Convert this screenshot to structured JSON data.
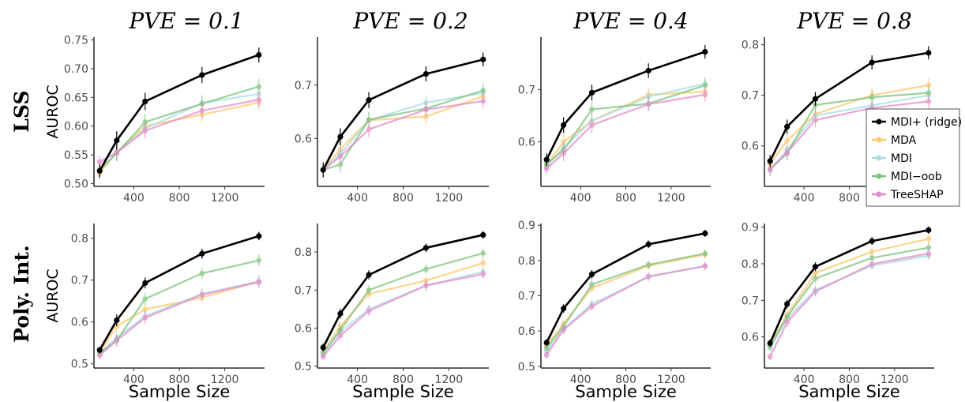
{
  "figure": {
    "column_titles": [
      "PVE = 0.1",
      "PVE = 0.2",
      "PVE = 0.4",
      "PVE = 0.8"
    ],
    "row_labels": [
      "LSS",
      "Poly. Int."
    ],
    "legend": [
      {
        "name": "MDI+ (ridge)",
        "color": "#000000"
      },
      {
        "name": "MDA",
        "color": "#fdc66a"
      },
      {
        "name": "MDI",
        "color": "#a8dbe0"
      },
      {
        "name": "MDI−oob",
        "color": "#7dc27d"
      },
      {
        "name": "TreeSHAP",
        "color": "#e48ac9"
      }
    ],
    "legend_location": "panel row 1, column 4, right side"
  },
  "chart_data": [
    {
      "type": "line",
      "title": "PVE = 0.1",
      "row": "LSS",
      "xlabel": "",
      "ylabel": "AUROC",
      "x": [
        100,
        250,
        500,
        1000,
        1500
      ],
      "xticks": [
        400,
        800,
        1200
      ],
      "xlim": [
        50,
        1550
      ],
      "ylim": [
        0.495,
        0.755
      ],
      "yticks": [
        0.5,
        0.55,
        0.6,
        0.65,
        0.7,
        0.75
      ],
      "ytick_labels": [
        "0.50",
        "0.55",
        "0.60",
        "0.65",
        "0.70",
        "0.75"
      ],
      "series": [
        {
          "name": "MDI+ (ridge)",
          "values": [
            0.522,
            0.575,
            0.643,
            0.689,
            0.724
          ],
          "err": [
            0.012,
            0.016,
            0.015,
            0.014,
            0.013
          ]
        },
        {
          "name": "MDA",
          "values": [
            0.518,
            0.555,
            0.6,
            0.62,
            0.641
          ],
          "err": [
            0.01,
            0.014,
            0.014,
            0.014,
            0.013
          ]
        },
        {
          "name": "MDI",
          "values": [
            0.524,
            0.553,
            0.596,
            0.64,
            0.656
          ],
          "err": [
            0.01,
            0.014,
            0.014,
            0.014,
            0.013
          ]
        },
        {
          "name": "MDI−oob",
          "values": [
            0.523,
            0.553,
            0.607,
            0.639,
            0.669
          ],
          "err": [
            0.01,
            0.014,
            0.014,
            0.014,
            0.013
          ]
        },
        {
          "name": "TreeSHAP",
          "values": [
            0.538,
            0.554,
            0.592,
            0.627,
            0.646
          ],
          "err": [
            0.01,
            0.014,
            0.014,
            0.014,
            0.013
          ]
        }
      ]
    },
    {
      "type": "line",
      "title": "PVE = 0.2",
      "row": "LSS",
      "xlabel": "",
      "ylabel": "",
      "x": [
        100,
        250,
        500,
        1000,
        1500
      ],
      "xticks": [
        400,
        800,
        1200
      ],
      "xlim": [
        50,
        1550
      ],
      "ylim": [
        0.51,
        0.79
      ],
      "yticks": [
        0.6,
        0.7
      ],
      "ytick_labels": [
        "0.6",
        "0.7"
      ],
      "series": [
        {
          "name": "MDI+ (ridge)",
          "values": [
            0.541,
            0.603,
            0.672,
            0.721,
            0.748
          ],
          "err": [
            0.014,
            0.016,
            0.015,
            0.014,
            0.013
          ]
        },
        {
          "name": "MDA",
          "values": [
            0.541,
            0.58,
            0.634,
            0.641,
            0.679
          ],
          "err": [
            0.013,
            0.015,
            0.015,
            0.014,
            0.013
          ]
        },
        {
          "name": "MDI",
          "values": [
            0.542,
            0.571,
            0.634,
            0.667,
            0.685
          ],
          "err": [
            0.013,
            0.015,
            0.015,
            0.014,
            0.013
          ]
        },
        {
          "name": "MDI−oob",
          "values": [
            0.541,
            0.551,
            0.635,
            0.656,
            0.69
          ],
          "err": [
            0.013,
            0.015,
            0.015,
            0.014,
            0.013
          ]
        },
        {
          "name": "TreeSHAP",
          "values": [
            0.541,
            0.566,
            0.617,
            0.654,
            0.67
          ],
          "err": [
            0.013,
            0.015,
            0.015,
            0.014,
            0.013
          ]
        }
      ]
    },
    {
      "type": "line",
      "title": "PVE = 0.4",
      "row": "LSS",
      "xlabel": "",
      "ylabel": "",
      "x": [
        100,
        250,
        500,
        1000,
        1500
      ],
      "xticks": [
        400,
        800,
        1200
      ],
      "xlim": [
        50,
        1550
      ],
      "ylim": [
        0.515,
        0.8
      ],
      "yticks": [
        0.6,
        0.7
      ],
      "ytick_labels": [
        "0.6",
        "0.7"
      ],
      "series": [
        {
          "name": "MDI+ (ridge)",
          "values": [
            0.566,
            0.632,
            0.694,
            0.736,
            0.772
          ],
          "err": [
            0.012,
            0.015,
            0.015,
            0.014,
            0.013
          ]
        },
        {
          "name": "MDA",
          "values": [
            0.556,
            0.6,
            0.64,
            0.69,
            0.696
          ],
          "err": [
            0.012,
            0.015,
            0.015,
            0.014,
            0.013
          ]
        },
        {
          "name": "MDI",
          "values": [
            0.553,
            0.589,
            0.64,
            0.686,
            0.711
          ],
          "err": [
            0.012,
            0.015,
            0.015,
            0.014,
            0.013
          ]
        },
        {
          "name": "MDI−oob",
          "values": [
            0.558,
            0.584,
            0.662,
            0.673,
            0.708
          ],
          "err": [
            0.012,
            0.015,
            0.015,
            0.014,
            0.013
          ]
        },
        {
          "name": "TreeSHAP",
          "values": [
            0.549,
            0.578,
            0.632,
            0.672,
            0.69
          ],
          "err": [
            0.012,
            0.015,
            0.015,
            0.014,
            0.013
          ]
        }
      ]
    },
    {
      "type": "line",
      "title": "PVE = 0.8",
      "row": "LSS",
      "xlabel": "",
      "ylabel": "",
      "x": [
        100,
        250,
        500,
        1000,
        1500
      ],
      "xticks": [
        400,
        800,
        1200
      ],
      "xlim": [
        50,
        1550
      ],
      "ylim": [
        0.52,
        0.815
      ],
      "yticks": [
        0.6,
        0.7,
        0.8
      ],
      "ytick_labels": [
        "0.6",
        "0.7",
        "0.8"
      ],
      "series": [
        {
          "name": "MDI+ (ridge)",
          "values": [
            0.57,
            0.638,
            0.693,
            0.765,
            0.784
          ],
          "err": [
            0.012,
            0.014,
            0.014,
            0.014,
            0.013
          ]
        },
        {
          "name": "MDA",
          "values": [
            0.565,
            0.61,
            0.663,
            0.7,
            0.72
          ],
          "err": [
            0.012,
            0.014,
            0.014,
            0.014,
            0.013
          ]
        },
        {
          "name": "MDI",
          "values": [
            0.552,
            0.592,
            0.66,
            0.68,
            0.7
          ],
          "err": [
            0.012,
            0.014,
            0.014,
            0.014,
            0.013
          ]
        },
        {
          "name": "MDI−oob",
          "values": [
            0.554,
            0.585,
            0.681,
            0.696,
            0.705
          ],
          "err": [
            0.012,
            0.014,
            0.014,
            0.014,
            0.013
          ]
        },
        {
          "name": "TreeSHAP",
          "values": [
            0.553,
            0.587,
            0.651,
            0.675,
            0.688
          ],
          "err": [
            0.012,
            0.014,
            0.014,
            0.014,
            0.013
          ]
        }
      ]
    },
    {
      "type": "line",
      "title": "",
      "row": "Poly. Int.",
      "xlabel": "Sample Size",
      "ylabel": "AUROC",
      "x": [
        100,
        250,
        500,
        1000,
        1500
      ],
      "xticks": [
        400,
        800,
        1200
      ],
      "xlim": [
        50,
        1550
      ],
      "ylim": [
        0.49,
        0.835
      ],
      "yticks": [
        0.5,
        0.6,
        0.7,
        0.8
      ],
      "ytick_labels": [
        "0.5",
        "0.6",
        "0.7",
        "0.8"
      ],
      "series": [
        {
          "name": "MDI+ (ridge)",
          "values": [
            0.533,
            0.604,
            0.693,
            0.763,
            0.805
          ],
          "err": [
            0.008,
            0.014,
            0.013,
            0.012,
            0.01
          ]
        },
        {
          "name": "MDA",
          "values": [
            0.527,
            0.59,
            0.63,
            0.658,
            0.697
          ],
          "err": [
            0.01,
            0.014,
            0.015,
            0.013,
            0.014
          ]
        },
        {
          "name": "MDI",
          "values": [
            0.525,
            0.562,
            0.614,
            0.667,
            0.697
          ],
          "err": [
            0.01,
            0.014,
            0.015,
            0.013,
            0.014
          ]
        },
        {
          "name": "MDI−oob",
          "values": [
            0.526,
            0.556,
            0.655,
            0.716,
            0.747
          ],
          "err": [
            0.01,
            0.014,
            0.015,
            0.013,
            0.014
          ]
        },
        {
          "name": "TreeSHAP",
          "values": [
            0.52,
            0.556,
            0.61,
            0.665,
            0.695
          ],
          "err": [
            0.01,
            0.014,
            0.015,
            0.013,
            0.014
          ]
        }
      ]
    },
    {
      "type": "line",
      "title": "",
      "row": "Poly. Int.",
      "xlabel": "Sample Size",
      "ylabel": "",
      "x": [
        100,
        250,
        500,
        1000,
        1500
      ],
      "xticks": [
        400,
        800,
        1200
      ],
      "xlim": [
        50,
        1550
      ],
      "ylim": [
        0.495,
        0.875
      ],
      "yticks": [
        0.5,
        0.6,
        0.7,
        0.8
      ],
      "ytick_labels": [
        "0.5",
        "0.6",
        "0.7",
        "0.8"
      ],
      "series": [
        {
          "name": "MDI+ (ridge)",
          "values": [
            0.549,
            0.638,
            0.74,
            0.811,
            0.845
          ],
          "err": [
            0.01,
            0.013,
            0.012,
            0.011,
            0.01
          ]
        },
        {
          "name": "MDA",
          "values": [
            0.538,
            0.605,
            0.69,
            0.725,
            0.771
          ],
          "err": [
            0.01,
            0.013,
            0.013,
            0.013,
            0.013
          ]
        },
        {
          "name": "MDI",
          "values": [
            0.53,
            0.59,
            0.65,
            0.712,
            0.748
          ],
          "err": [
            0.01,
            0.013,
            0.013,
            0.013,
            0.013
          ]
        },
        {
          "name": "MDI−oob",
          "values": [
            0.535,
            0.595,
            0.7,
            0.755,
            0.797
          ],
          "err": [
            0.01,
            0.013,
            0.013,
            0.013,
            0.013
          ]
        },
        {
          "name": "TreeSHAP",
          "values": [
            0.525,
            0.58,
            0.645,
            0.712,
            0.742
          ],
          "err": [
            0.01,
            0.013,
            0.013,
            0.013,
            0.013
          ]
        }
      ]
    },
    {
      "type": "line",
      "title": "",
      "row": "Poly. Int.",
      "xlabel": "Sample Size",
      "ylabel": "",
      "x": [
        100,
        250,
        500,
        1000,
        1500
      ],
      "xticks": [
        400,
        800,
        1200
      ],
      "xlim": [
        50,
        1550
      ],
      "ylim": [
        0.495,
        0.905
      ],
      "yticks": [
        0.5,
        0.6,
        0.7,
        0.8,
        0.9
      ],
      "ytick_labels": [
        "0.5",
        "0.6",
        "0.7",
        "0.8",
        "0.9"
      ],
      "series": [
        {
          "name": "MDI+ (ridge)",
          "values": [
            0.567,
            0.664,
            0.761,
            0.846,
            0.877
          ],
          "err": [
            0.01,
            0.012,
            0.012,
            0.011,
            0.01
          ]
        },
        {
          "name": "MDA",
          "values": [
            0.56,
            0.62,
            0.722,
            0.785,
            0.817
          ],
          "err": [
            0.01,
            0.013,
            0.013,
            0.012,
            0.012
          ]
        },
        {
          "name": "MDI",
          "values": [
            0.542,
            0.605,
            0.677,
            0.753,
            0.785
          ],
          "err": [
            0.01,
            0.013,
            0.013,
            0.012,
            0.012
          ]
        },
        {
          "name": "MDI−oob",
          "values": [
            0.552,
            0.613,
            0.732,
            0.788,
            0.82
          ],
          "err": [
            0.01,
            0.013,
            0.013,
            0.012,
            0.012
          ]
        },
        {
          "name": "TreeSHAP",
          "values": [
            0.532,
            0.604,
            0.67,
            0.755,
            0.784
          ],
          "err": [
            0.01,
            0.013,
            0.013,
            0.012,
            0.012
          ]
        }
      ]
    },
    {
      "type": "line",
      "title": "",
      "row": "Poly. Int.",
      "xlabel": "Sample Size",
      "ylabel": "",
      "x": [
        100,
        250,
        500,
        1000,
        1500
      ],
      "xticks": [
        400,
        800,
        1200
      ],
      "xlim": [
        50,
        1550
      ],
      "ylim": [
        0.515,
        0.91
      ],
      "yticks": [
        0.6,
        0.7,
        0.8,
        0.9
      ],
      "ytick_labels": [
        "0.6",
        "0.7",
        "0.8",
        "0.9"
      ],
      "series": [
        {
          "name": "MDI+ (ridge)",
          "values": [
            0.583,
            0.69,
            0.792,
            0.862,
            0.892
          ],
          "err": [
            0.01,
            0.012,
            0.012,
            0.011,
            0.01
          ]
        },
        {
          "name": "MDA",
          "values": [
            0.578,
            0.66,
            0.775,
            0.833,
            0.868
          ],
          "err": [
            0.01,
            0.013,
            0.013,
            0.012,
            0.012
          ]
        },
        {
          "name": "MDI",
          "values": [
            0.57,
            0.65,
            0.728,
            0.795,
            0.822
          ],
          "err": [
            0.01,
            0.013,
            0.013,
            0.012,
            0.012
          ]
        },
        {
          "name": "MDI−oob",
          "values": [
            0.575,
            0.655,
            0.76,
            0.816,
            0.844
          ],
          "err": [
            0.01,
            0.013,
            0.013,
            0.012,
            0.012
          ]
        },
        {
          "name": "TreeSHAP",
          "values": [
            0.546,
            0.64,
            0.724,
            0.799,
            0.828
          ],
          "err": [
            0.01,
            0.013,
            0.013,
            0.012,
            0.012
          ]
        }
      ]
    }
  ]
}
